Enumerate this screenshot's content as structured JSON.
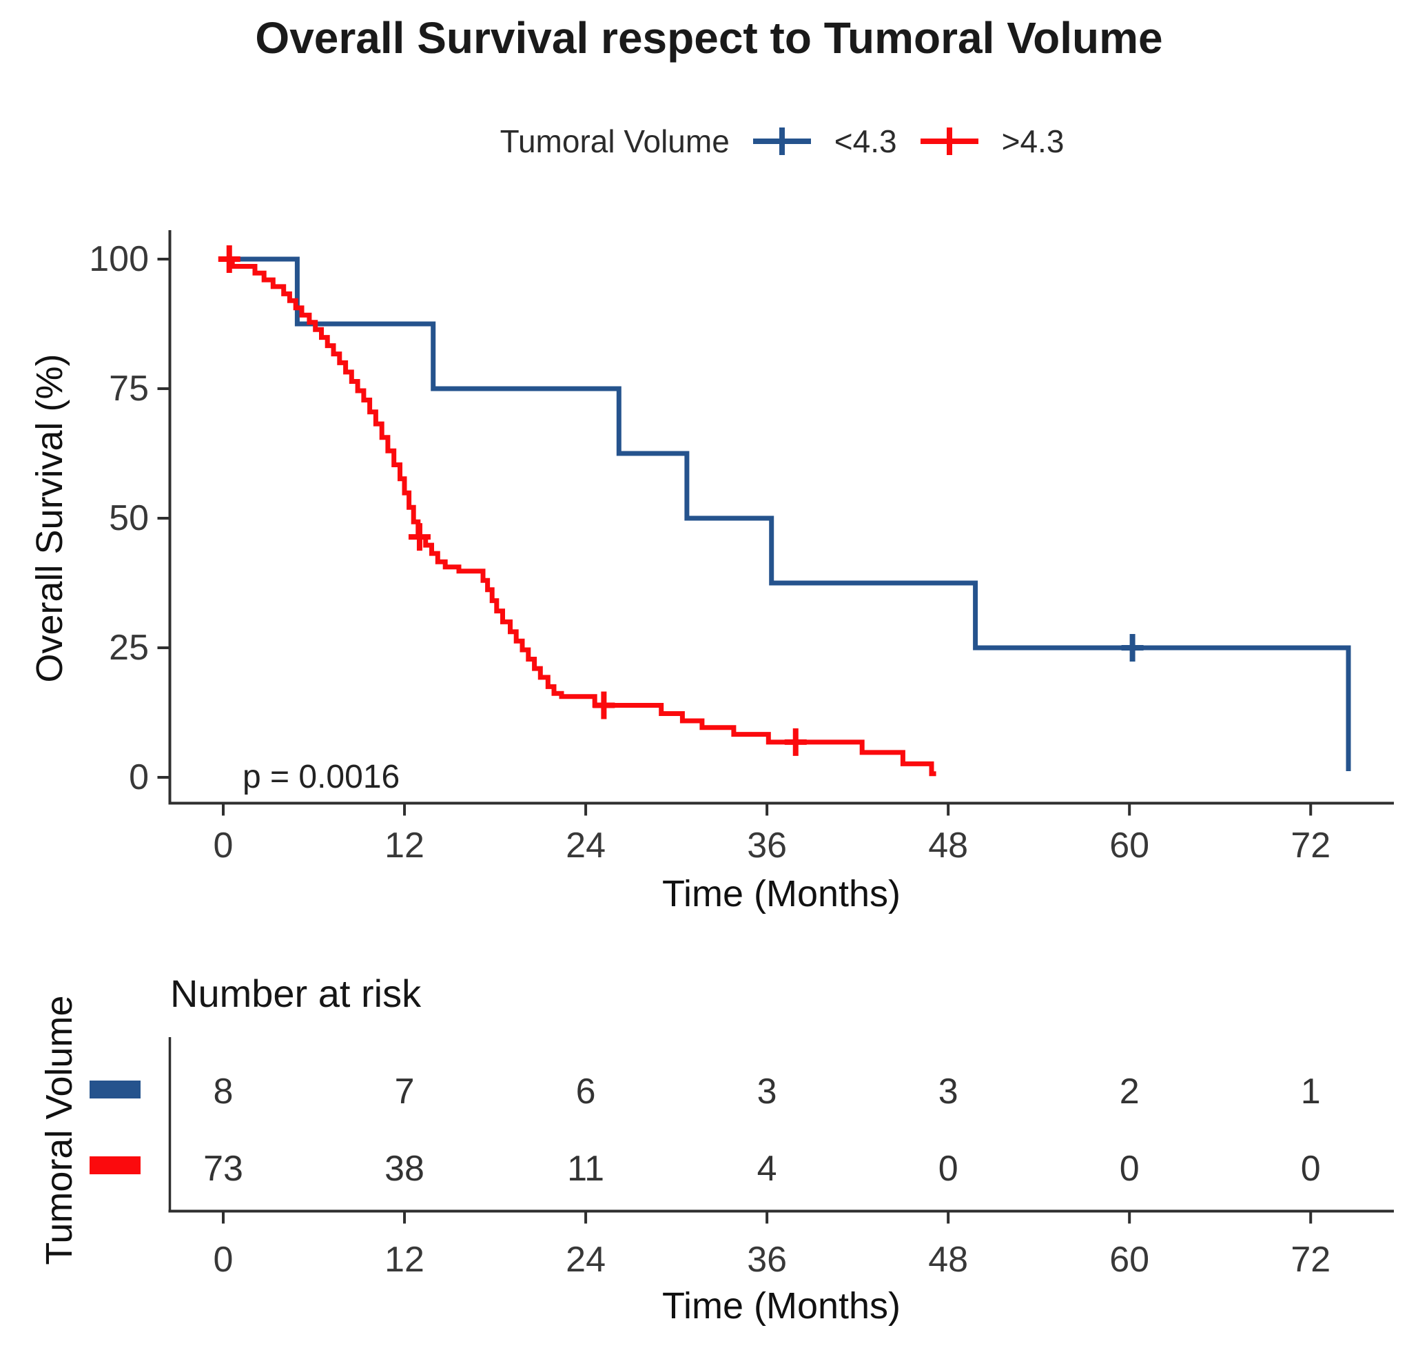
{
  "title": "Overall Survival respect to Tumoral Volume",
  "legend": {
    "title": "Tumoral Volume",
    "items": [
      {
        "label": "<4.3",
        "color": "#25538D"
      },
      {
        "label": ">4.3",
        "color": "#FB0A0D"
      }
    ]
  },
  "annotations": {
    "pvalue": "p = 0.0016"
  },
  "colors": {
    "blue_group": "#25538D",
    "red_group": "#FB0A0D",
    "axis": "#2f2f2f",
    "tick_text": "#383838",
    "text": "#1a1a1a"
  },
  "chart_data": {
    "type": "line",
    "subtype": "kaplan-meier-step",
    "title": "Overall Survival respect to Tumoral Volume",
    "xlabel": "Time (Months)",
    "ylabel": "Overall Survival (%)",
    "xlim": [
      0,
      76
    ],
    "ylim": [
      0,
      100
    ],
    "xticks": [
      0,
      12,
      24,
      36,
      48,
      60,
      72
    ],
    "yticks": [
      0,
      25,
      50,
      75,
      100
    ],
    "grid": false,
    "legend_position": "top",
    "pvalue": "p = 0.0016",
    "series": [
      {
        "name": "<4.3",
        "color": "#25538D",
        "start": [
          0,
          100
        ],
        "drops": [
          [
            4.9,
            87.5
          ],
          [
            13.9,
            75
          ],
          [
            26.2,
            62.5
          ],
          [
            30.7,
            50
          ],
          [
            36.3,
            37.5
          ],
          [
            49.8,
            25
          ],
          [
            74.5,
            1.2
          ]
        ],
        "end_time": 74.5,
        "censor_marks": [
          [
            60.2,
            25
          ]
        ]
      },
      {
        "name": ">4.3",
        "color": "#FB0A0D",
        "start": [
          0,
          100
        ],
        "drops": [
          [
            0.6,
            98.6
          ],
          [
            2.1,
            97.3
          ],
          [
            2.7,
            96.0
          ],
          [
            3.3,
            94.7
          ],
          [
            4.0,
            93.3
          ],
          [
            4.4,
            92.0
          ],
          [
            4.8,
            90.6
          ],
          [
            5.2,
            89.2
          ],
          [
            5.7,
            87.8
          ],
          [
            6.1,
            86.4
          ],
          [
            6.5,
            84.9
          ],
          [
            6.9,
            83.3
          ],
          [
            7.3,
            81.7
          ],
          [
            7.7,
            80.0
          ],
          [
            8.1,
            78.2
          ],
          [
            8.5,
            76.4
          ],
          [
            8.9,
            74.6
          ],
          [
            9.3,
            72.8
          ],
          [
            9.7,
            70.5
          ],
          [
            10.1,
            68.2
          ],
          [
            10.5,
            65.6
          ],
          [
            10.9,
            63.0
          ],
          [
            11.3,
            60.3
          ],
          [
            11.7,
            57.6
          ],
          [
            12.0,
            54.9
          ],
          [
            12.3,
            52.1
          ],
          [
            12.6,
            49.3
          ],
          [
            12.9,
            46.4
          ],
          [
            13.4,
            44.8
          ],
          [
            13.8,
            43.2
          ],
          [
            14.2,
            41.6
          ],
          [
            14.7,
            40.6
          ],
          [
            15.6,
            39.8
          ],
          [
            17.2,
            38.0
          ],
          [
            17.5,
            36.2
          ],
          [
            17.8,
            34.1
          ],
          [
            18.1,
            32.1
          ],
          [
            18.5,
            30.0
          ],
          [
            19.0,
            28.1
          ],
          [
            19.4,
            26.3
          ],
          [
            19.8,
            24.6
          ],
          [
            20.2,
            22.8
          ],
          [
            20.6,
            21.0
          ],
          [
            21.0,
            19.3
          ],
          [
            21.5,
            17.5
          ],
          [
            21.9,
            16.2
          ],
          [
            22.4,
            15.6
          ],
          [
            24.6,
            13.9
          ],
          [
            29.0,
            12.3
          ],
          [
            30.4,
            10.9
          ],
          [
            31.7,
            9.6
          ],
          [
            33.8,
            8.3
          ],
          [
            36.1,
            6.8
          ],
          [
            42.3,
            4.8
          ],
          [
            45.0,
            2.6
          ],
          [
            46.9,
            0.7
          ]
        ],
        "end_time": 47.2,
        "censor_marks": [
          [
            0.4,
            100
          ],
          [
            13.0,
            46.4
          ],
          [
            25.2,
            13.9
          ],
          [
            37.9,
            6.8
          ]
        ]
      }
    ]
  },
  "risk_table": {
    "title": "Number at risk",
    "ylabel": "Tumoral Volume",
    "xlabel": "Time (Months)",
    "times": [
      0,
      12,
      24,
      36,
      48,
      60,
      72
    ],
    "rows": [
      {
        "name": "<4.3",
        "color": "#25538D",
        "counts": [
          8,
          7,
          6,
          3,
          3,
          2,
          1
        ]
      },
      {
        "name": ">4.3",
        "color": "#FB0A0D",
        "counts": [
          73,
          38,
          11,
          4,
          0,
          0,
          0
        ]
      }
    ]
  }
}
